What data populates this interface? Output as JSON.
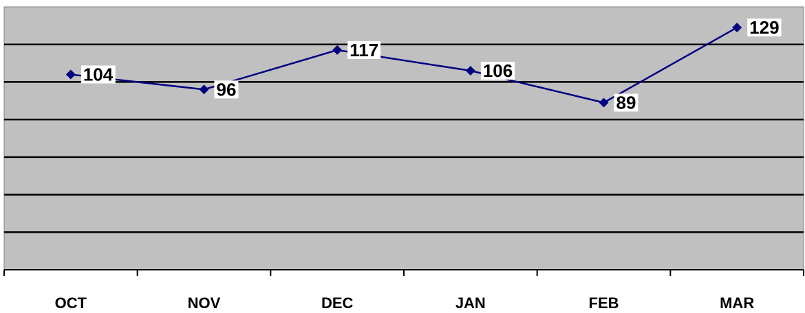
{
  "chart_data": {
    "type": "line",
    "categories": [
      "OCT",
      "NOV",
      "DEC",
      "JAN",
      "FEB",
      "MAR"
    ],
    "series": [
      {
        "values": [
          104,
          96,
          117,
          106,
          89,
          129
        ]
      }
    ],
    "data_labels": [
      "104",
      "96",
      "117",
      "106",
      "89",
      "129"
    ],
    "title": "",
    "xlabel": "",
    "ylabel": "",
    "ylim": [
      0,
      140
    ],
    "grid": true,
    "y_tick_labels_shown": false,
    "colors": {
      "plot_background": "#c0c0c0",
      "line": "#000080",
      "marker": "#000080",
      "gridline": "#000000"
    }
  }
}
